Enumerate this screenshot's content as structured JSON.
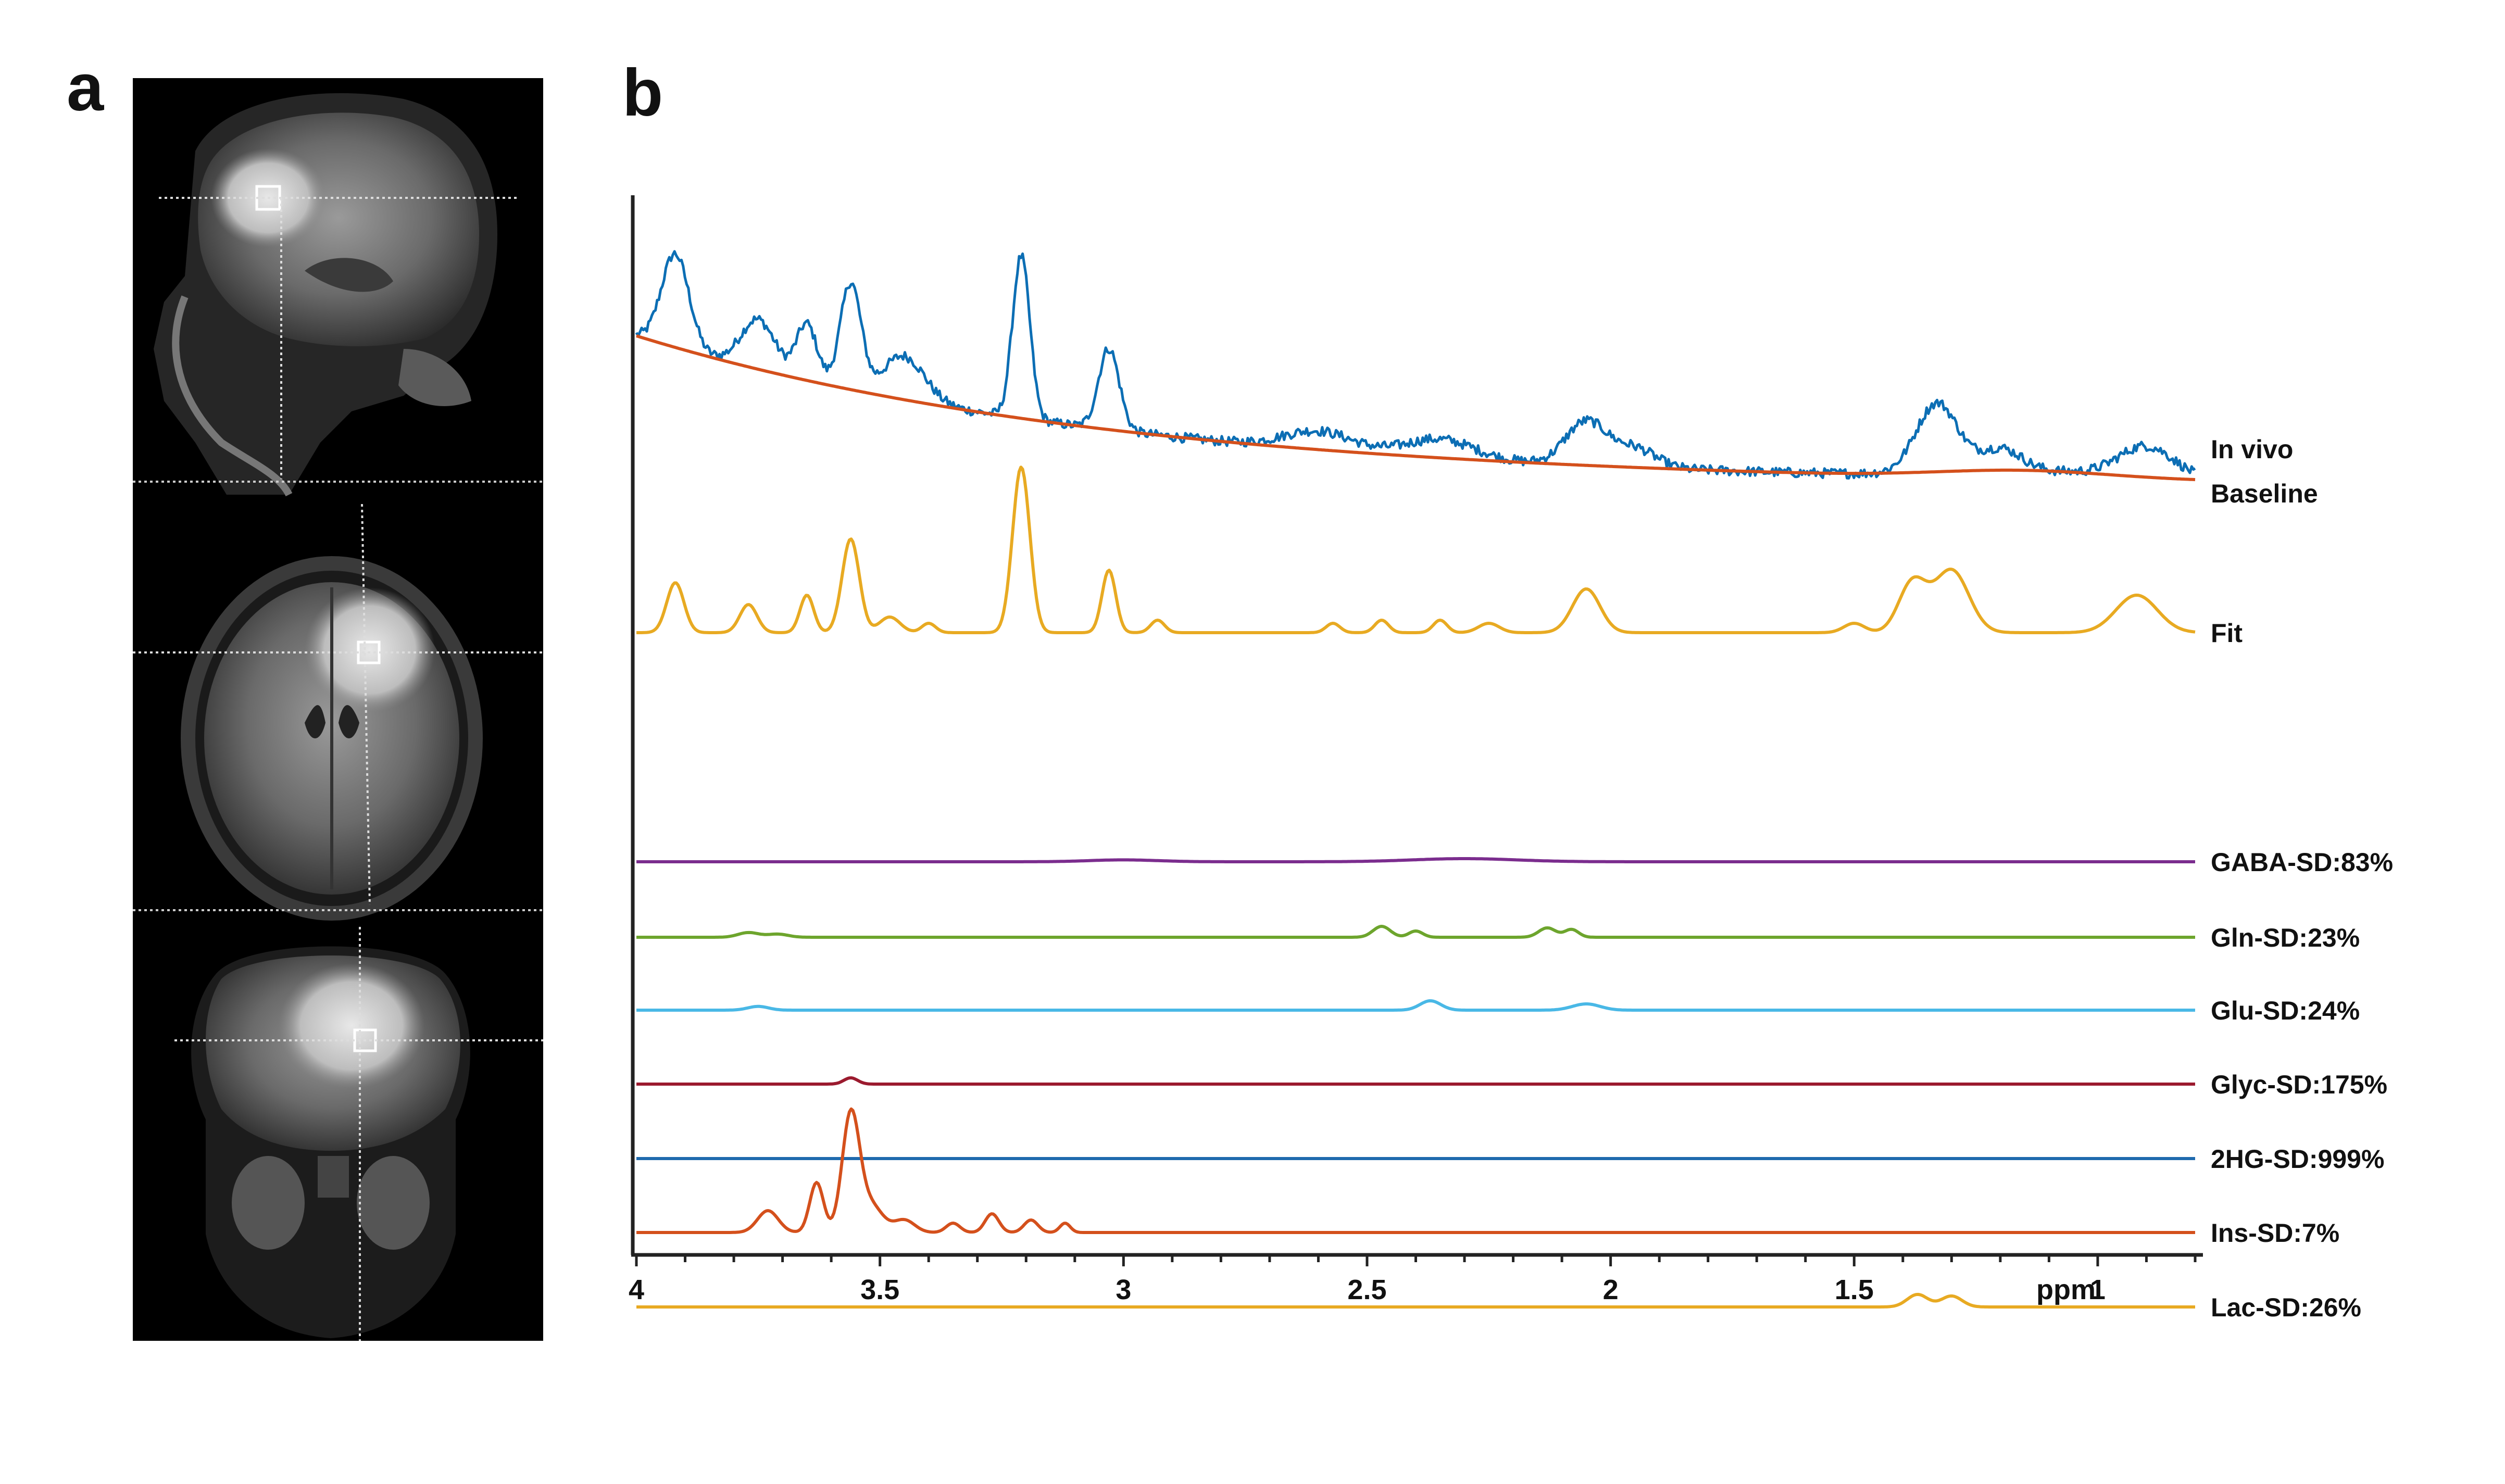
{
  "panels": {
    "a": "a",
    "b": "b"
  },
  "chart_data": {
    "type": "line",
    "x_axis": {
      "label": "ppm",
      "reversed": true,
      "xlim": [
        4.0,
        0.8
      ],
      "ticks": [
        4,
        3.5,
        3,
        2.5,
        2,
        1.5,
        1
      ],
      "tick_labels": [
        "4",
        "3.5",
        "3",
        "2.5",
        "2",
        "1.5",
        "1"
      ]
    },
    "series": [
      {
        "name": "In vivo",
        "color": "#0c6eb4",
        "offset": 0,
        "noise": 0.35,
        "base": "curve",
        "peaks": [
          [
            3.92,
            3.0,
            0.04
          ],
          [
            3.75,
            1.6,
            0.05
          ],
          [
            3.65,
            1.8,
            0.03
          ],
          [
            3.56,
            3.4,
            0.03
          ],
          [
            3.45,
            1.4,
            0.06
          ],
          [
            3.21,
            5.2,
            0.025
          ],
          [
            3.03,
            2.6,
            0.03
          ],
          [
            2.6,
            0.6,
            0.1
          ],
          [
            2.35,
            0.6,
            0.1
          ],
          [
            2.05,
            1.4,
            0.06
          ],
          [
            1.95,
            0.6,
            0.06
          ],
          [
            1.33,
            2.2,
            0.06
          ],
          [
            1.2,
            0.7,
            0.06
          ],
          [
            0.9,
            1.0,
            0.08
          ]
        ]
      },
      {
        "name": "Baseline",
        "color": "#d4501c",
        "offset": 0,
        "noise": 0,
        "base": "curve",
        "peaks": []
      },
      {
        "name": "Fit",
        "color": "#e8aa22",
        "offset": 560,
        "noise": 0,
        "peaks": [
          [
            3.92,
            1.6,
            0.025
          ],
          [
            3.77,
            0.9,
            0.025
          ],
          [
            3.65,
            1.2,
            0.02
          ],
          [
            3.56,
            3.0,
            0.025
          ],
          [
            3.48,
            0.5,
            0.03
          ],
          [
            3.4,
            0.3,
            0.02
          ],
          [
            3.21,
            5.3,
            0.025
          ],
          [
            3.03,
            2.0,
            0.02
          ],
          [
            2.93,
            0.4,
            0.02
          ],
          [
            2.57,
            0.3,
            0.02
          ],
          [
            2.47,
            0.4,
            0.02
          ],
          [
            2.35,
            0.4,
            0.02
          ],
          [
            2.25,
            0.3,
            0.03
          ],
          [
            2.05,
            1.4,
            0.04
          ],
          [
            1.5,
            0.3,
            0.03
          ],
          [
            1.38,
            1.6,
            0.04
          ],
          [
            1.3,
            2.0,
            0.05
          ],
          [
            0.92,
            1.2,
            0.06
          ]
        ]
      },
      {
        "name": "GABA-SD:83%",
        "color": "#7b2d8e",
        "offset": 1000,
        "noise": 0,
        "peaks": [
          [
            3.0,
            0.06,
            0.1
          ],
          [
            2.3,
            0.1,
            0.15
          ]
        ]
      },
      {
        "name": "Gln-SD:23%",
        "color": "#6da52d",
        "offset": 1145,
        "noise": 0,
        "peaks": [
          [
            3.77,
            0.15,
            0.03
          ],
          [
            3.71,
            0.1,
            0.03
          ],
          [
            2.47,
            0.35,
            0.025
          ],
          [
            2.4,
            0.2,
            0.02
          ],
          [
            2.13,
            0.3,
            0.025
          ],
          [
            2.08,
            0.25,
            0.02
          ]
        ]
      },
      {
        "name": "Glu-SD:24%",
        "color": "#49b8e6",
        "offset": 1285,
        "noise": 0,
        "peaks": [
          [
            3.75,
            0.12,
            0.03
          ],
          [
            2.37,
            0.3,
            0.03
          ],
          [
            2.05,
            0.2,
            0.04
          ]
        ]
      },
      {
        "name": "Glyc-SD:175%",
        "color": "#9b1a2e",
        "offset": 1427,
        "noise": 0,
        "peaks": [
          [
            3.56,
            0.2,
            0.02
          ]
        ]
      },
      {
        "name": "2HG-SD:999%",
        "color": "#1f6aae",
        "offset": 1570,
        "noise": 0,
        "peaks": []
      },
      {
        "name": "Ins-SD:7%",
        "color": "#d4501c",
        "offset": 1712,
        "noise": 0,
        "peaks": [
          [
            3.73,
            0.7,
            0.03
          ],
          [
            3.63,
            1.6,
            0.02
          ],
          [
            3.56,
            3.7,
            0.025
          ],
          [
            3.52,
            0.9,
            0.035
          ],
          [
            3.45,
            0.4,
            0.03
          ],
          [
            3.35,
            0.3,
            0.02
          ],
          [
            3.27,
            0.6,
            0.02
          ],
          [
            3.19,
            0.4,
            0.02
          ],
          [
            3.12,
            0.3,
            0.015
          ]
        ]
      },
      {
        "name": "Lac-SD:26%",
        "color": "#e8aa22",
        "offset": 1855,
        "noise": 0,
        "peaks": [
          [
            1.37,
            0.4,
            0.03
          ],
          [
            1.3,
            0.35,
            0.03
          ]
        ]
      }
    ]
  },
  "mri": {
    "views": [
      {
        "name": "sagittal"
      },
      {
        "name": "axial"
      },
      {
        "name": "coronal"
      }
    ]
  }
}
